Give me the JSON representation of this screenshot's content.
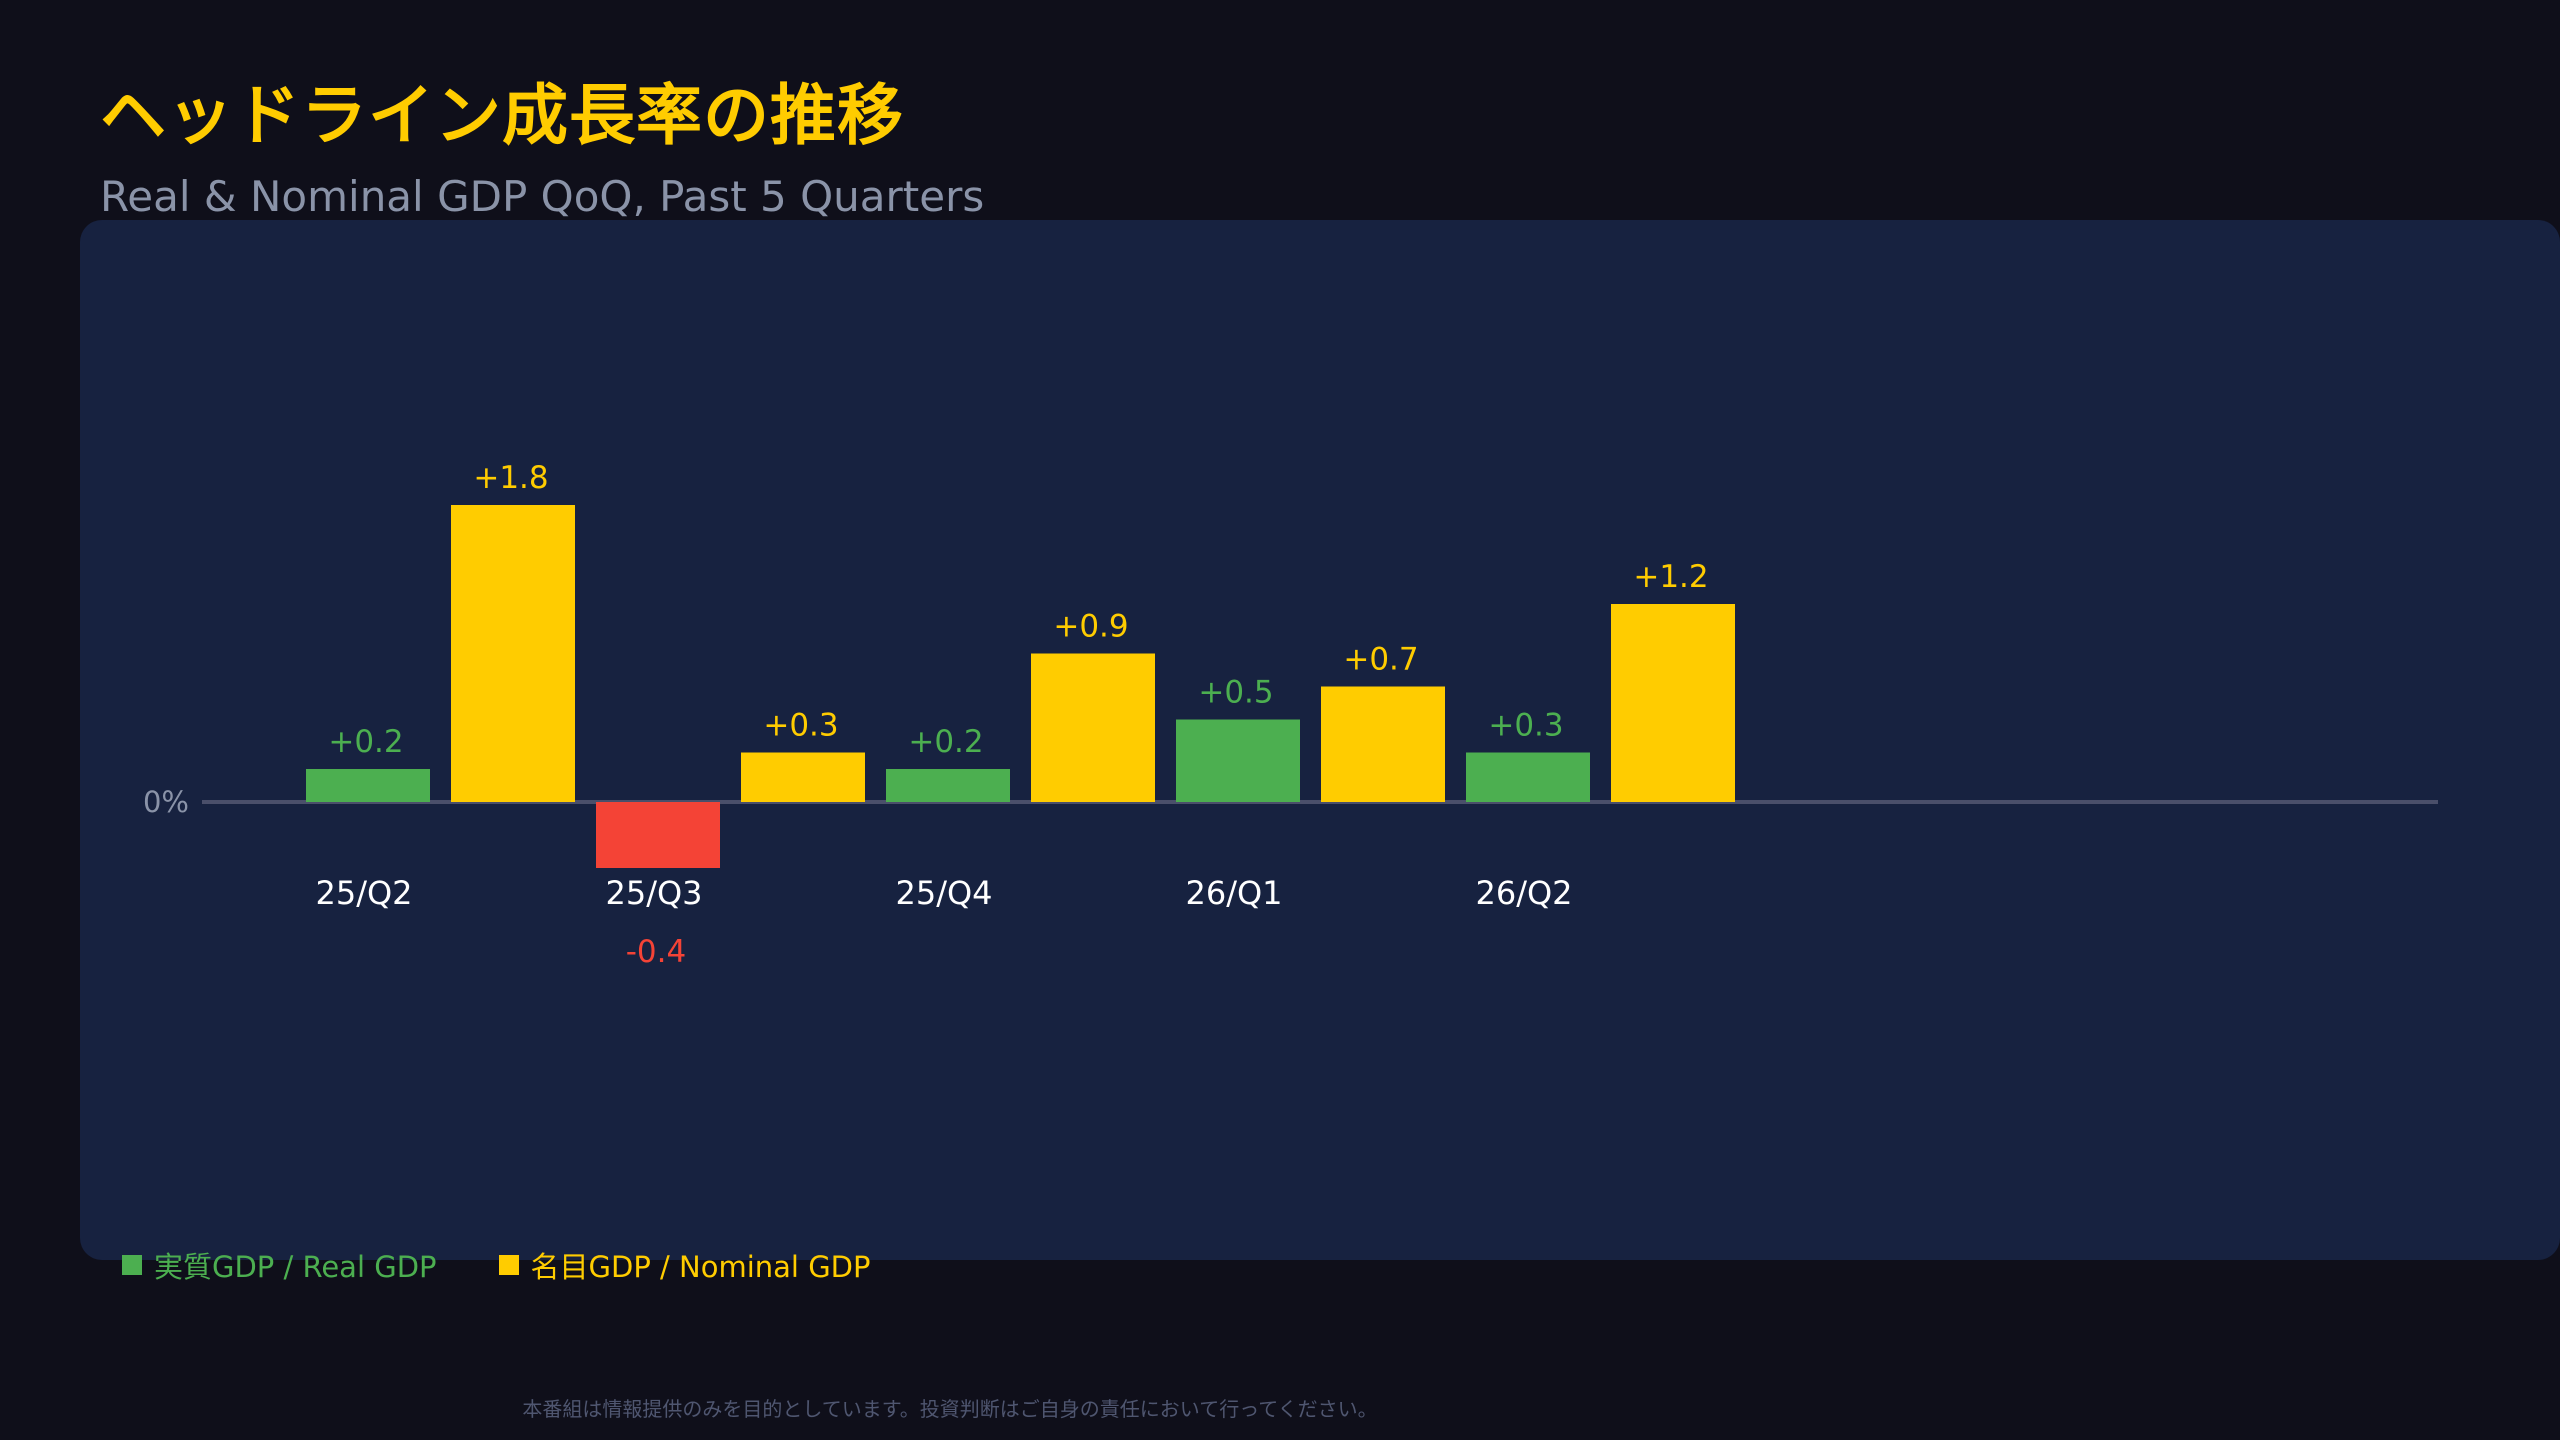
{
  "title": "ヘッドライン成長率の推移",
  "subtitle": "Real & Nominal GDP QoQ, Past 5 Quarters",
  "colors": {
    "real": "#4caf50",
    "nominal": "#ffcc00",
    "negative": "#f44336",
    "axis": "#4a4f6a",
    "category_label": "#ffffff",
    "zero_label": "#8a93a8"
  },
  "chart_data": {
    "type": "bar",
    "categories": [
      "25/Q2",
      "25/Q3",
      "25/Q4",
      "26/Q1",
      "26/Q2"
    ],
    "series": [
      {
        "name": "実質GDP / Real GDP",
        "key": "real",
        "values": [
          0.2,
          -0.4,
          0.2,
          0.5,
          0.3
        ],
        "labels": [
          "+0.2",
          "-0.4",
          "+0.2",
          "+0.5",
          "+0.3"
        ]
      },
      {
        "name": "名目GDP / Nominal GDP",
        "key": "nominal",
        "values": [
          1.8,
          0.3,
          0.9,
          0.7,
          1.2
        ],
        "labels": [
          "+1.8",
          "+0.3",
          "+0.9",
          "+0.7",
          "+1.2"
        ]
      }
    ],
    "zero_label": "0%",
    "legend_position": "bottom-left"
  },
  "legend": {
    "real_label": "実質GDP / Real GDP",
    "nominal_label": "名目GDP / Nominal GDP"
  },
  "disclaimer": "本番組は情報提供のみを目的としています。投資判断はご自身の責任において行ってください。"
}
